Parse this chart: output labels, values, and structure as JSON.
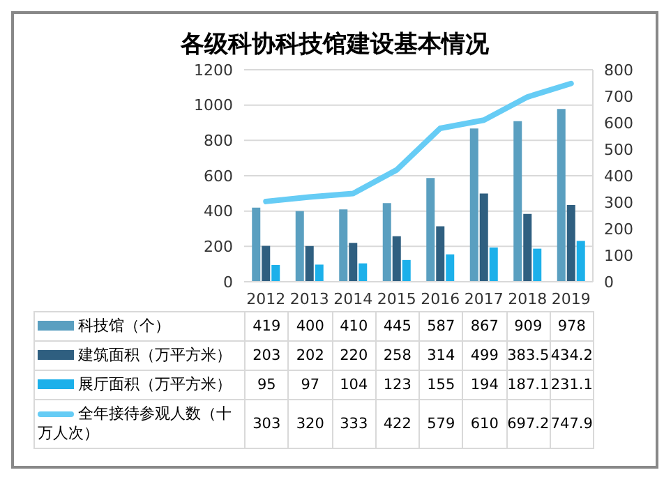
{
  "chart_data": {
    "type": "bar",
    "title": "各级科协科技馆建设基本情况",
    "categories": [
      "2012",
      "2013",
      "2014",
      "2015",
      "2016",
      "2017",
      "2018",
      "2019"
    ],
    "series": [
      {
        "name": "科技馆（个）",
        "color": "#5a9fc0",
        "values": [
          419,
          400,
          410,
          445,
          587,
          867,
          909,
          978
        ]
      },
      {
        "name": "建筑面积（万平方米）",
        "color": "#2f5f80",
        "values": [
          203,
          202,
          220,
          258,
          314,
          499,
          383.5,
          434.2
        ]
      },
      {
        "name": "展厅面积（万平方米）",
        "color": "#1cb0ea",
        "values": [
          95,
          97,
          104,
          123,
          155,
          194,
          187.1,
          231.1
        ]
      },
      {
        "name": "全年接待参观人数（十万人次）",
        "type": "line",
        "axis": "y2",
        "color": "#66ccf5",
        "values": [
          303,
          320,
          333,
          422,
          579,
          610,
          697.2,
          747.9
        ]
      }
    ],
    "ylim": [
      0,
      1200
    ],
    "yticks": [
      0,
      200,
      400,
      600,
      800,
      1000,
      1200
    ],
    "y2lim": [
      0,
      800
    ],
    "y2ticks": [
      0,
      100,
      200,
      300,
      400,
      500,
      600,
      700,
      800
    ],
    "grid": "y",
    "legend": "bottom",
    "data_labels": true
  }
}
